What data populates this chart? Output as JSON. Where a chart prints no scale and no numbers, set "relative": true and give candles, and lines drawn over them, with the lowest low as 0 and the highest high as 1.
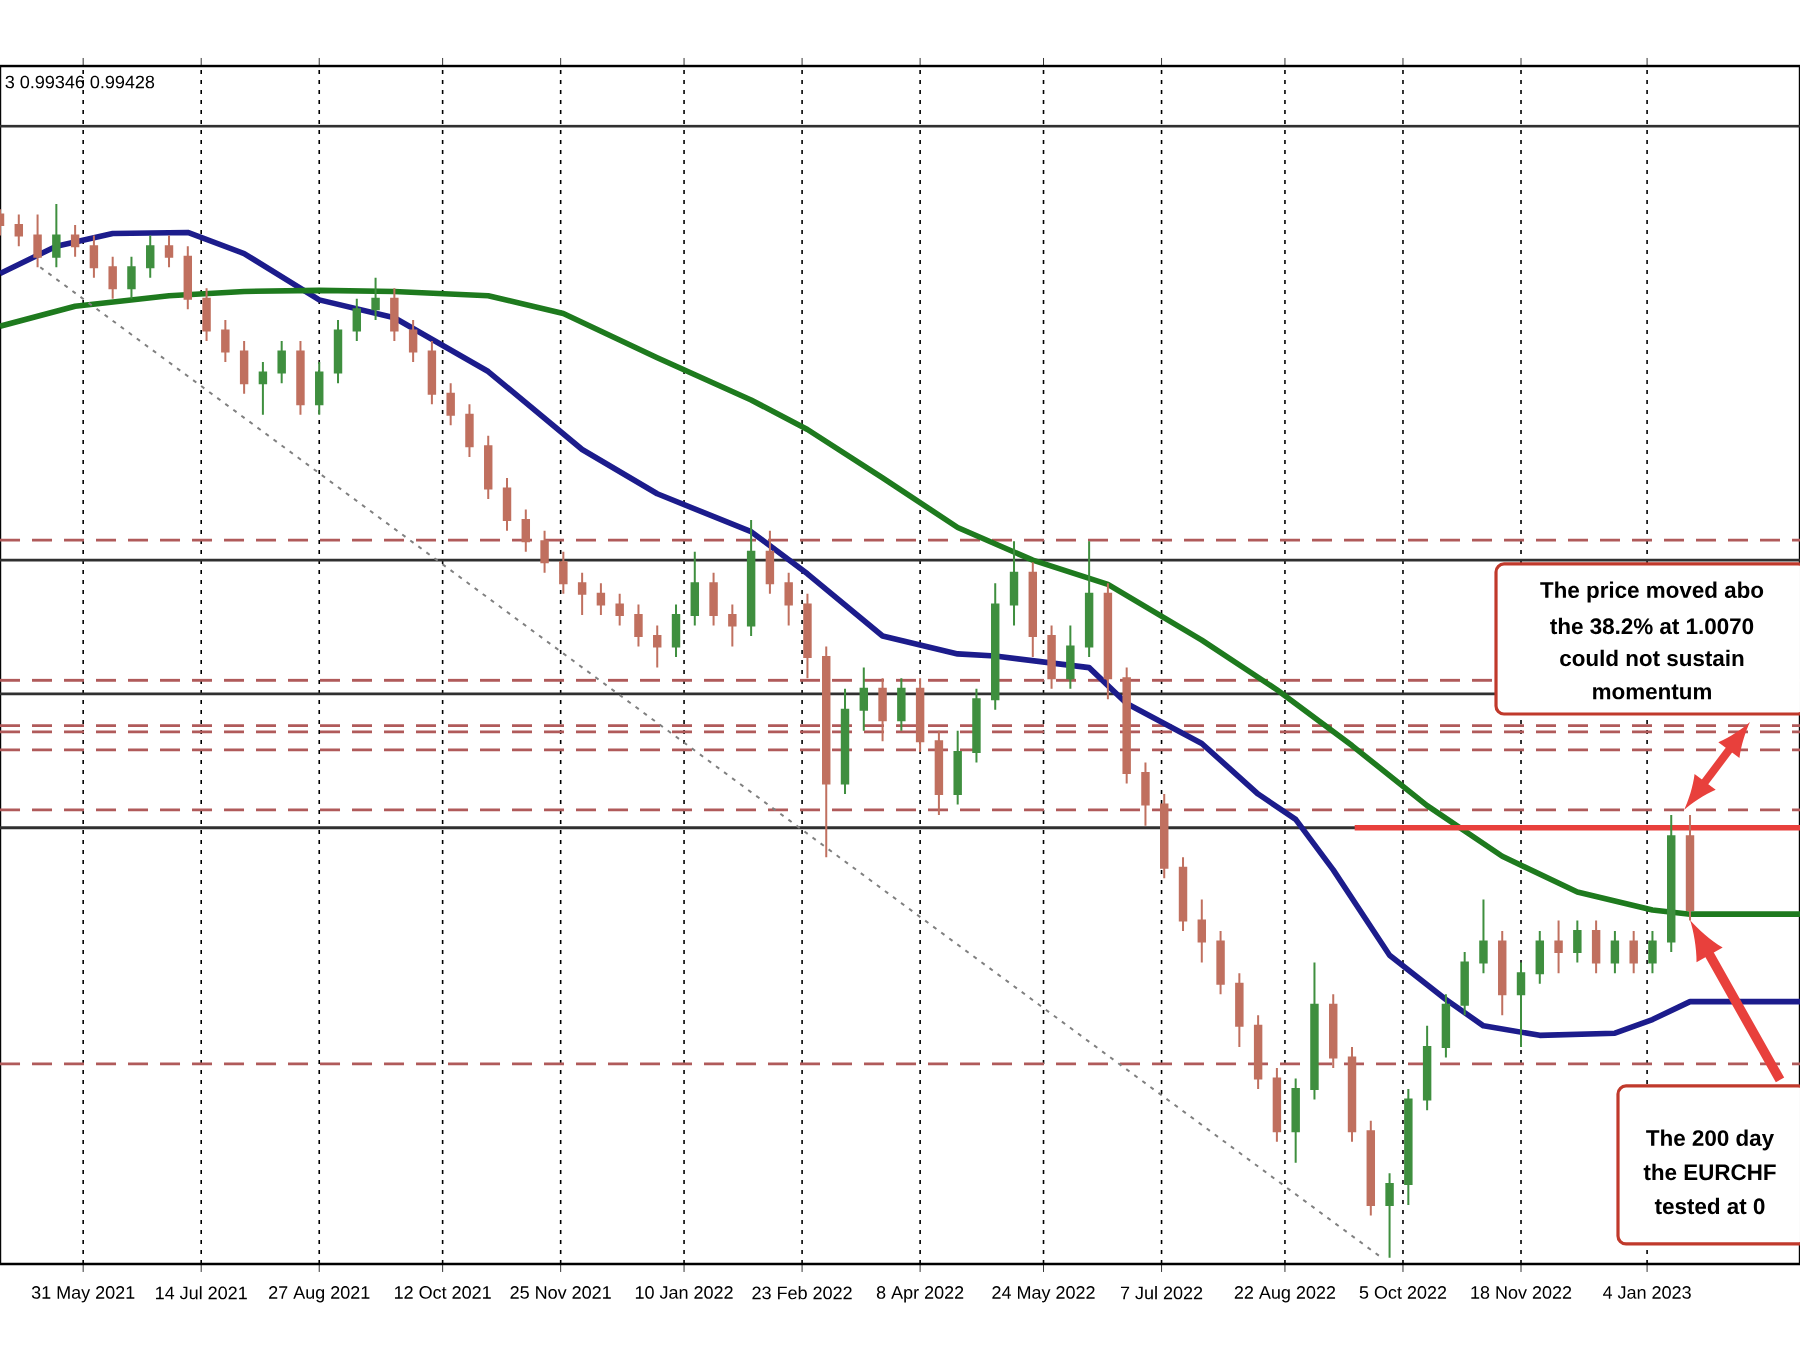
{
  "chart_data": {
    "type": "candlestick",
    "relative": true,
    "grid": "x",
    "xlim": [
      "2021-04-30",
      "2023-03-02"
    ],
    "xticks": [
      {
        "value": "2021-05-31",
        "label": "31 May 2021"
      },
      {
        "value": "2021-07-14",
        "label": "14 Jul 2021"
      },
      {
        "value": "2021-08-27",
        "label": "27 Aug 2021"
      },
      {
        "value": "2021-10-12",
        "label": "12 Oct 2021"
      },
      {
        "value": "2021-11-25",
        "label": "25 Nov 2021"
      },
      {
        "value": "2022-01-10",
        "label": "10 Jan 2022"
      },
      {
        "value": "2022-02-23",
        "label": "23 Feb 2022"
      },
      {
        "value": "2022-04-08",
        "label": "8 Apr 2022"
      },
      {
        "value": "2022-05-24",
        "label": "24 May 2022"
      },
      {
        "value": "2022-07-07",
        "label": "7 Jul 2022"
      },
      {
        "value": "2022-08-22",
        "label": "22 Aug 2022"
      },
      {
        "value": "2022-10-05",
        "label": "5 Oct 2022"
      },
      {
        "value": "2022-11-18",
        "label": "18 Nov 2022"
      },
      {
        "value": "2023-01-04",
        "label": "4 Jan 2023"
      }
    ],
    "x": [
      "2021-04-30",
      "2021-05-07",
      "2021-05-14",
      "2021-05-21",
      "2021-05-28",
      "2021-06-04",
      "2021-06-11",
      "2021-06-18",
      "2021-06-25",
      "2021-07-02",
      "2021-07-09",
      "2021-07-16",
      "2021-07-23",
      "2021-07-30",
      "2021-08-06",
      "2021-08-13",
      "2021-08-20",
      "2021-08-27",
      "2021-09-03",
      "2021-09-10",
      "2021-09-17",
      "2021-09-24",
      "2021-10-01",
      "2021-10-08",
      "2021-10-15",
      "2021-10-22",
      "2021-10-29",
      "2021-11-05",
      "2021-11-12",
      "2021-11-19",
      "2021-11-26",
      "2021-12-03",
      "2021-12-10",
      "2021-12-17",
      "2021-12-24",
      "2021-12-31",
      "2022-01-07",
      "2022-01-14",
      "2022-01-21",
      "2022-01-28",
      "2022-02-04",
      "2022-02-11",
      "2022-02-18",
      "2022-02-25",
      "2022-03-04",
      "2022-03-11",
      "2022-03-18",
      "2022-03-25",
      "2022-04-01",
      "2022-04-08",
      "2022-04-15",
      "2022-04-22",
      "2022-04-29",
      "2022-05-06",
      "2022-05-13",
      "2022-05-20",
      "2022-05-27",
      "2022-06-03",
      "2022-06-10",
      "2022-06-17",
      "2022-06-24",
      "2022-07-01",
      "2022-07-08",
      "2022-07-15",
      "2022-07-22",
      "2022-07-29",
      "2022-08-05",
      "2022-08-12",
      "2022-08-19",
      "2022-08-26",
      "2022-09-02",
      "2022-09-09",
      "2022-09-16",
      "2022-09-23",
      "2022-09-30",
      "2022-10-07",
      "2022-10-14",
      "2022-10-21",
      "2022-10-28",
      "2022-11-04",
      "2022-11-11",
      "2022-11-18",
      "2022-11-25",
      "2022-12-02",
      "2022-12-09",
      "2022-12-16",
      "2022-12-23",
      "2022-12-30",
      "2023-01-06",
      "2023-01-13",
      "2023-01-20"
    ],
    "ohlc": [
      [
        0.99,
        0.995,
        0.97,
        0.98
      ],
      [
        0.98,
        0.99,
        0.96,
        0.97
      ],
      [
        0.97,
        0.99,
        0.94,
        0.95
      ],
      [
        0.95,
        1.0,
        0.94,
        0.97
      ],
      [
        0.97,
        0.98,
        0.95,
        0.96
      ],
      [
        0.96,
        0.97,
        0.93,
        0.94
      ],
      [
        0.94,
        0.95,
        0.91,
        0.92
      ],
      [
        0.92,
        0.95,
        0.91,
        0.94
      ],
      [
        0.94,
        0.97,
        0.93,
        0.96
      ],
      [
        0.96,
        0.97,
        0.94,
        0.95
      ],
      [
        0.95,
        0.96,
        0.9,
        0.91
      ],
      [
        0.91,
        0.92,
        0.87,
        0.88
      ],
      [
        0.88,
        0.89,
        0.85,
        0.86
      ],
      [
        0.86,
        0.87,
        0.82,
        0.83
      ],
      [
        0.83,
        0.85,
        0.8,
        0.84
      ],
      [
        0.84,
        0.87,
        0.83,
        0.86
      ],
      [
        0.86,
        0.87,
        0.8,
        0.81
      ],
      [
        0.81,
        0.85,
        0.8,
        0.84
      ],
      [
        0.84,
        0.89,
        0.83,
        0.88
      ],
      [
        0.88,
        0.91,
        0.87,
        0.9
      ],
      [
        0.9,
        0.93,
        0.89,
        0.91
      ],
      [
        0.91,
        0.92,
        0.87,
        0.88
      ],
      [
        0.88,
        0.89,
        0.85,
        0.86
      ],
      [
        0.86,
        0.87,
        0.81,
        0.82
      ],
      [
        0.82,
        0.83,
        0.79,
        0.8
      ],
      [
        0.8,
        0.81,
        0.76,
        0.77
      ],
      [
        0.77,
        0.78,
        0.72,
        0.73
      ],
      [
        0.73,
        0.74,
        0.69,
        0.7
      ],
      [
        0.7,
        0.71,
        0.67,
        0.68
      ],
      [
        0.68,
        0.69,
        0.65,
        0.66
      ],
      [
        0.66,
        0.67,
        0.63,
        0.64
      ],
      [
        0.64,
        0.65,
        0.61,
        0.63
      ],
      [
        0.63,
        0.64,
        0.61,
        0.62
      ],
      [
        0.62,
        0.63,
        0.6,
        0.61
      ],
      [
        0.61,
        0.62,
        0.58,
        0.59
      ],
      [
        0.59,
        0.6,
        0.56,
        0.58
      ],
      [
        0.58,
        0.62,
        0.57,
        0.61
      ],
      [
        0.61,
        0.67,
        0.6,
        0.64
      ],
      [
        0.64,
        0.65,
        0.6,
        0.61
      ],
      [
        0.61,
        0.62,
        0.58,
        0.6
      ],
      [
        0.6,
        0.7,
        0.59,
        0.67
      ],
      [
        0.67,
        0.69,
        0.63,
        0.64
      ],
      [
        0.64,
        0.65,
        0.6,
        0.62
      ],
      [
        0.62,
        0.63,
        0.55,
        0.57
      ],
      [
        0.57,
        0.58,
        0.38,
        0.45
      ],
      [
        0.45,
        0.54,
        0.44,
        0.52
      ],
      [
        0.52,
        0.56,
        0.5,
        0.54
      ],
      [
        0.54,
        0.55,
        0.49,
        0.51
      ],
      [
        0.51,
        0.55,
        0.5,
        0.54
      ],
      [
        0.54,
        0.55,
        0.48,
        0.49
      ],
      [
        0.49,
        0.5,
        0.42,
        0.44
      ],
      [
        0.44,
        0.5,
        0.43,
        0.48
      ],
      [
        0.48,
        0.54,
        0.47,
        0.53
      ],
      [
        0.53,
        0.64,
        0.52,
        0.62
      ],
      [
        0.62,
        0.68,
        0.6,
        0.65
      ],
      [
        0.65,
        0.66,
        0.57,
        0.59
      ],
      [
        0.59,
        0.6,
        0.54,
        0.55
      ],
      [
        0.55,
        0.6,
        0.54,
        0.58
      ],
      [
        0.58,
        0.68,
        0.57,
        0.63
      ],
      [
        0.63,
        0.64,
        0.53,
        0.55
      ],
      [
        0.55,
        0.56,
        0.45,
        0.46
      ],
      [
        0.46,
        0.47,
        0.41,
        0.43
      ],
      [
        0.43,
        0.44,
        0.36,
        0.37
      ],
      [
        0.37,
        0.38,
        0.31,
        0.32
      ],
      [
        0.32,
        0.34,
        0.28,
        0.3
      ],
      [
        0.3,
        0.31,
        0.25,
        0.26
      ],
      [
        0.26,
        0.27,
        0.2,
        0.22
      ],
      [
        0.22,
        0.23,
        0.16,
        0.17
      ],
      [
        0.17,
        0.18,
        0.11,
        0.12
      ],
      [
        0.12,
        0.17,
        0.09,
        0.16
      ],
      [
        0.16,
        0.28,
        0.15,
        0.24
      ],
      [
        0.24,
        0.25,
        0.18,
        0.19
      ],
      [
        0.19,
        0.2,
        0.11,
        0.12
      ],
      [
        0.12,
        0.13,
        0.04,
        0.05
      ],
      [
        0.05,
        0.08,
        0.0,
        0.07
      ],
      [
        0.07,
        0.16,
        0.05,
        0.15
      ],
      [
        0.15,
        0.22,
        0.14,
        0.2
      ],
      [
        0.2,
        0.25,
        0.19,
        0.24
      ],
      [
        0.24,
        0.29,
        0.23,
        0.28
      ],
      [
        0.28,
        0.34,
        0.27,
        0.3
      ],
      [
        0.3,
        0.31,
        0.23,
        0.25
      ],
      [
        0.25,
        0.28,
        0.2,
        0.27
      ],
      [
        0.27,
        0.31,
        0.26,
        0.3
      ],
      [
        0.3,
        0.32,
        0.27,
        0.29
      ],
      [
        0.29,
        0.32,
        0.28,
        0.31
      ],
      [
        0.31,
        0.32,
        0.27,
        0.28
      ],
      [
        0.28,
        0.31,
        0.27,
        0.3
      ],
      [
        0.3,
        0.31,
        0.27,
        0.28
      ],
      [
        0.28,
        0.31,
        0.27,
        0.3
      ],
      [
        0.3,
        0.42,
        0.29,
        0.4
      ],
      [
        0.4,
        0.42,
        0.32,
        0.33
      ]
    ],
    "series": [
      {
        "type": "line",
        "color": "#1c1c8c",
        "x": [
          "2021-04-30",
          "2021-05-21",
          "2021-06-11",
          "2021-07-09",
          "2021-07-30",
          "2021-08-27",
          "2021-09-24",
          "2021-10-29",
          "2021-12-03",
          "2021-12-31",
          "2022-02-04",
          "2022-02-25",
          "2022-03-25",
          "2022-04-22",
          "2022-05-06",
          "2022-06-10",
          "2022-06-24",
          "2022-07-22",
          "2022-08-12",
          "2022-08-26",
          "2022-09-09",
          "2022-09-30",
          "2022-10-21",
          "2022-11-04",
          "2022-11-25",
          "2022-12-23",
          "2023-01-06",
          "2023-01-20",
          "2023-03-02"
        ],
        "values": [
          0.934,
          0.96,
          0.972,
          0.973,
          0.953,
          0.909,
          0.892,
          0.841,
          0.767,
          0.725,
          0.689,
          0.649,
          0.59,
          0.573,
          0.571,
          0.56,
          0.526,
          0.488,
          0.44,
          0.416,
          0.368,
          0.287,
          0.245,
          0.22,
          0.211,
          0.213,
          0.226,
          0.243,
          0.243
        ]
      },
      {
        "type": "line",
        "color": "#1e7a1e",
        "x": [
          "2021-04-30",
          "2021-05-28",
          "2021-07-02",
          "2021-07-30",
          "2021-08-27",
          "2021-09-24",
          "2021-10-29",
          "2021-11-26",
          "2021-12-31",
          "2022-02-04",
          "2022-02-25",
          "2022-03-25",
          "2022-04-22",
          "2022-05-20",
          "2022-06-17",
          "2022-07-22",
          "2022-08-19",
          "2022-09-16",
          "2022-10-14",
          "2022-11-11",
          "2022-12-09",
          "2023-01-06",
          "2023-01-20",
          "2023-03-02"
        ],
        "values": [
          0.884,
          0.903,
          0.913,
          0.917,
          0.918,
          0.917,
          0.913,
          0.896,
          0.854,
          0.814,
          0.786,
          0.74,
          0.693,
          0.662,
          0.639,
          0.586,
          0.539,
          0.486,
          0.429,
          0.381,
          0.347,
          0.33,
          0.326,
          0.326
        ]
      },
      {
        "type": "line",
        "color": "#808080",
        "line_style": "dotted",
        "x": [
          "2021-05-15",
          "2022-09-27"
        ],
        "values": [
          0.94,
          0.0
        ]
      },
      {
        "type": "line",
        "color": "#e8403c",
        "x": [
          "2022-09-17",
          "2023-03-02"
        ],
        "values": [
          0.408,
          0.408
        ]
      }
    ],
    "ref_lines": [
      {
        "axis": "y",
        "value": 1.074,
        "color": "#303030",
        "line_style": "solid"
      },
      {
        "axis": "y",
        "value": 0.681,
        "color": "#b05a5a",
        "line_style": "dashed"
      },
      {
        "axis": "y",
        "value": 0.662,
        "color": "#303030",
        "line_style": "solid"
      },
      {
        "axis": "y",
        "value": 0.548,
        "color": "#b05a5a",
        "line_style": "dashed"
      },
      {
        "axis": "y",
        "value": 0.535,
        "color": "#303030",
        "line_style": "solid"
      },
      {
        "axis": "y",
        "value": 0.505,
        "color": "#b05a5a",
        "line_style": "dashed"
      },
      {
        "axis": "y",
        "value": 0.499,
        "color": "#b05a5a",
        "line_style": "dashed"
      },
      {
        "axis": "y",
        "value": 0.482,
        "color": "#b05a5a",
        "line_style": "dashed"
      },
      {
        "axis": "y",
        "value": 0.425,
        "color": "#b05a5a",
        "line_style": "dashed"
      },
      {
        "axis": "y",
        "value": 0.408,
        "color": "#303030",
        "line_style": "solid"
      },
      {
        "axis": "y",
        "value": 0.184,
        "color": "#b05a5a",
        "line_style": "dashed"
      }
    ],
    "annotations": [
      "3 0.99346 0.99428",
      "The price moved abo",
      "the 38.2% at 1.0070",
      "could not sustain",
      "momentum",
      "The 200 day",
      "the EURCHF",
      "tested at 0"
    ]
  }
}
